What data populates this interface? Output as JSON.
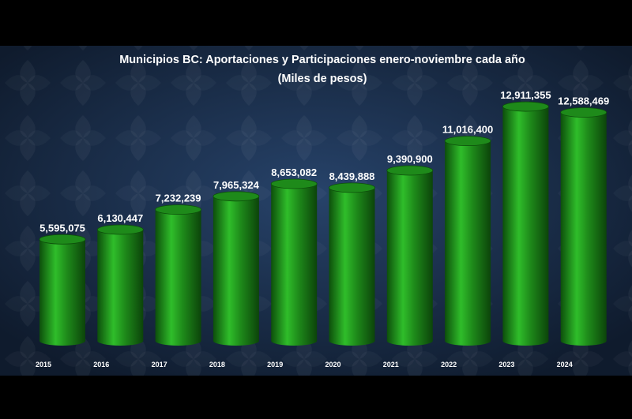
{
  "chart_data": {
    "type": "bar",
    "title": "Municipios BC: Aportaciones y Participaciones enero-noviembre cada año",
    "subtitle": "(Miles de pesos)",
    "categories": [
      "2015",
      "2016",
      "2017",
      "2018",
      "2019",
      "2020",
      "2021",
      "2022",
      "2023",
      "2024"
    ],
    "values": [
      5595075,
      6130447,
      7232239,
      7965324,
      8653082,
      8439888,
      9390900,
      11016400,
      12911355,
      12588469
    ],
    "value_labels": [
      "5,595,075",
      "6,130,447",
      "7,232,239",
      "7,965,324",
      "8,653,082",
      "8,439,888",
      "9,390,900",
      "11,016,400",
      "12,911,355",
      "12,588,469"
    ],
    "ylim": [
      0,
      14000000
    ],
    "bar_shape": "cylinder",
    "grid": false,
    "legend": "none",
    "colors": {
      "bar": "#1e8a1a",
      "bar_highlight": "#2fbd2a",
      "bar_shadow": "#0d4f0b",
      "background": "#1c2f4a",
      "text": "#ffffff"
    }
  }
}
